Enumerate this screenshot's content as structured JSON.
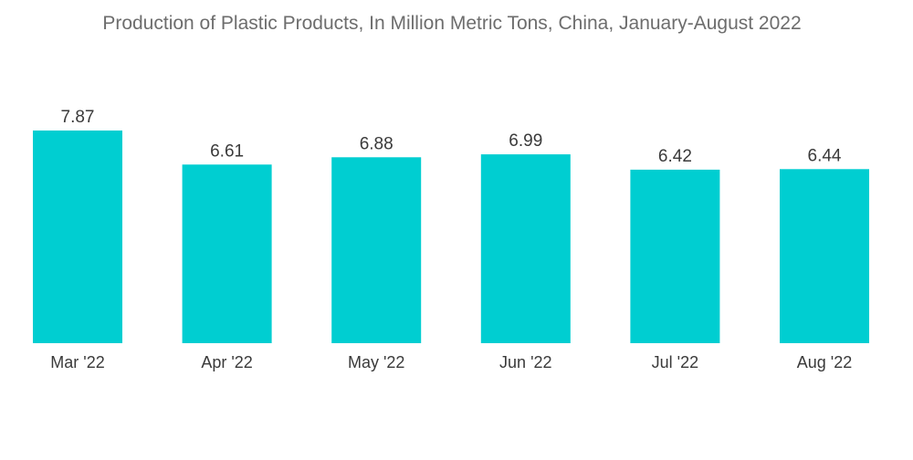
{
  "chart_data": {
    "type": "bar",
    "title": "Production of Plastic Products, In Million Metric Tons, China, January-August 2022",
    "categories": [
      "Mar '22",
      "Apr '22",
      "May '22",
      "Jun '22",
      "Jul '22",
      "Aug '22"
    ],
    "values": [
      7.87,
      6.61,
      6.88,
      6.99,
      6.42,
      6.44
    ],
    "value_labels": [
      "7.87",
      "6.61",
      "6.88",
      "6.99",
      "6.42",
      "6.44"
    ],
    "xlabel": "",
    "ylabel": "",
    "ylim": [
      0,
      7.87
    ],
    "grid": false,
    "legend": "none",
    "bar_color": "#00ced1"
  }
}
